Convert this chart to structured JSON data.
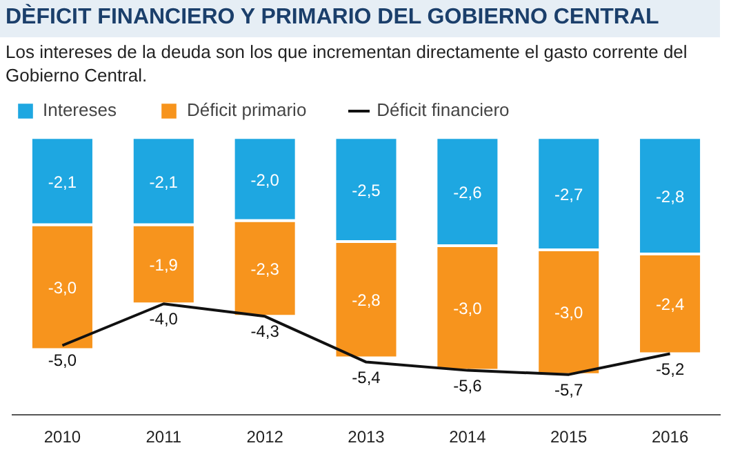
{
  "chart_data": {
    "type": "bar",
    "stacked": true,
    "title": "DÈFICIT FINANCIERO Y PRIMARIO DEL GOBIERNO CENTRAL",
    "subtitle": "Los intereses de la deuda son los que incrementan directamente el gasto corrente del Gobierno Central.",
    "categories": [
      "2010",
      "2011",
      "2012",
      "2013",
      "2014",
      "2015",
      "2016"
    ],
    "series": [
      {
        "name": "Intereses",
        "color": "#1ea7e1",
        "values": [
          -2.1,
          -2.1,
          -2.0,
          -2.5,
          -2.6,
          -2.7,
          -2.8
        ],
        "value_labels": [
          "-2,1",
          "-2,1",
          "-2,0",
          "-2,5",
          "-2,6",
          "-2,7",
          "-2,8"
        ]
      },
      {
        "name": "Déficit primario",
        "color": "#f7941d",
        "values": [
          -3.0,
          -1.9,
          -2.3,
          -2.8,
          -3.0,
          -3.0,
          -2.4
        ],
        "value_labels": [
          "-3,0",
          "-1,9",
          "-2,3",
          "-2,8",
          "-3,0",
          "-3,0",
          "-2,4"
        ]
      },
      {
        "name": "Déficit financiero",
        "color": "#111111",
        "type": "line",
        "values": [
          -5.0,
          -4.0,
          -4.3,
          -5.4,
          -5.6,
          -5.7,
          -5.2
        ],
        "value_labels": [
          "-5,0",
          "-4,0",
          "-4,3",
          "-5,4",
          "-5,6",
          "-5,7",
          "-5,2"
        ]
      }
    ],
    "legend": "top",
    "grid": false
  }
}
